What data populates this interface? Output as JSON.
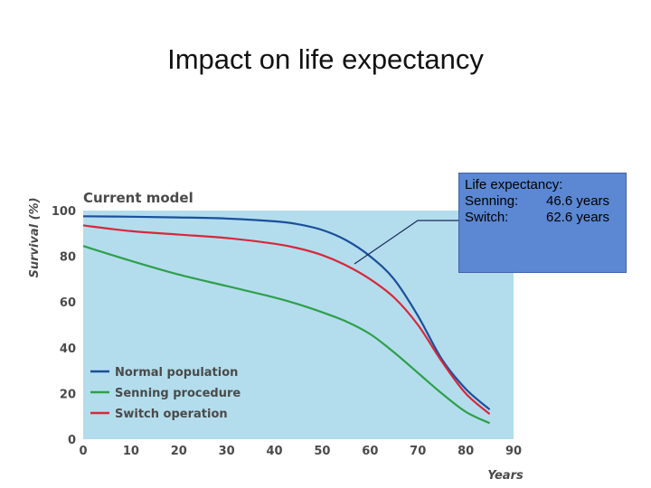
{
  "slide": {
    "title": "Impact on life expectancy"
  },
  "callout": {
    "heading": "Life expectancy:",
    "rows": [
      {
        "label": "Senning:",
        "value": "46.6 years"
      },
      {
        "label": "Switch:",
        "value": "62.6 years"
      }
    ]
  },
  "chart_data": {
    "type": "line",
    "title": "Current model",
    "xlabel": "Years",
    "ylabel": "Survival (%)",
    "xlim": [
      0,
      90
    ],
    "ylim": [
      0,
      100
    ],
    "xticks": [
      0,
      10,
      20,
      30,
      40,
      50,
      60,
      70,
      80,
      90
    ],
    "yticks": [
      0,
      20,
      40,
      60,
      80,
      100
    ],
    "grid": false,
    "legend_position": "bottom-left",
    "background_color": "#b3dded",
    "series": [
      {
        "name": "Normal population",
        "color": "#1b4f9c",
        "x": [
          0,
          10,
          20,
          30,
          40,
          45,
          50,
          55,
          60,
          65,
          70,
          75,
          80,
          85
        ],
        "y": [
          97.5,
          97.3,
          97,
          96.5,
          95.3,
          94,
          91.5,
          87,
          80,
          70,
          54,
          35,
          22,
          13
        ]
      },
      {
        "name": "Senning procedure",
        "color": "#2ea04a",
        "x": [
          0,
          10,
          20,
          30,
          40,
          45,
          50,
          55,
          60,
          65,
          70,
          75,
          80,
          85
        ],
        "y": [
          84.5,
          78,
          72,
          67,
          62,
          59,
          55.5,
          51.5,
          46,
          38,
          29,
          20,
          12,
          7
        ]
      },
      {
        "name": "Switch operation",
        "color": "#d9273b",
        "x": [
          0,
          10,
          20,
          30,
          40,
          45,
          50,
          55,
          60,
          65,
          70,
          75,
          80,
          85
        ],
        "y": [
          93.5,
          91,
          89.5,
          88,
          85.5,
          83.5,
          80.5,
          76,
          70,
          62,
          50,
          34,
          20,
          11
        ]
      }
    ]
  }
}
